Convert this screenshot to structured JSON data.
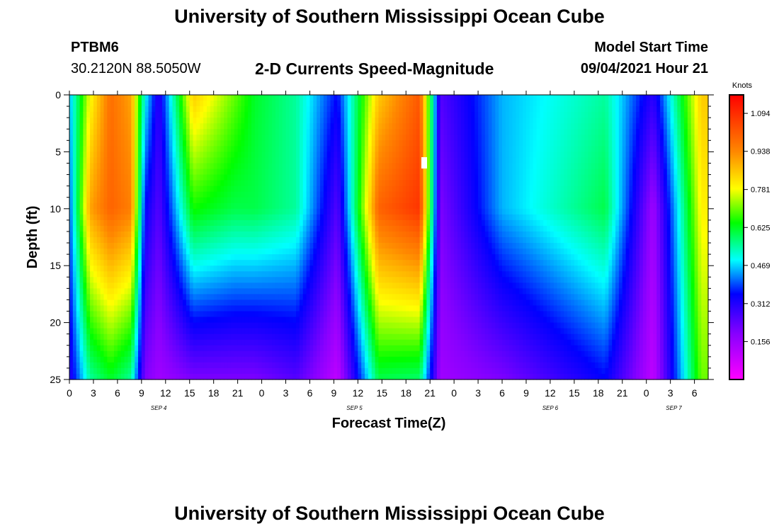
{
  "header": {
    "title": "University of Southern Mississippi Ocean Cube",
    "station_id": "PTBM6",
    "location": "30.2120N  88.5050W",
    "subtitle": "2-D Currents Speed-Magnitude",
    "model_label": "Model Start Time",
    "model_time": "09/04/2021 Hour 21"
  },
  "footer": {
    "title": "University of Southern Mississippi Ocean Cube"
  },
  "chart_data": {
    "type": "heatmap",
    "title": "2-D Currents Speed-Magnitude",
    "xlabel": "Forecast Time(Z)",
    "ylabel": "Depth (ft)",
    "x_hours": [
      0,
      93
    ],
    "y_range": [
      0,
      25
    ],
    "y_ticks": [
      0,
      5,
      10,
      15,
      20,
      25
    ],
    "x_tick_labels": [
      "0",
      "3",
      "6",
      "9",
      "12",
      "15",
      "18",
      "21",
      "0",
      "3",
      "6",
      "9",
      "12",
      "15",
      "18",
      "21",
      "0",
      "3",
      "6",
      "9",
      "12",
      "15",
      "18",
      "21",
      "0",
      "3",
      "6"
    ],
    "day_labels": [
      {
        "text": "SEP 4",
        "hour": 13
      },
      {
        "text": "SEP 5",
        "hour": 41.5
      },
      {
        "text": "SEP 6",
        "hour": 70
      },
      {
        "text": "SEP 7",
        "hour": 88
      }
    ],
    "colorbar": {
      "unit": "Knots",
      "min": 0.0,
      "max": 1.17,
      "tick_values": [
        1.094,
        0.938,
        0.781,
        0.625,
        0.469,
        0.312,
        0.156
      ],
      "tick_labels": [
        "1.094",
        "0.938",
        "0.781",
        "0.625",
        "0.469",
        "0.312",
        "0.156"
      ]
    },
    "flood_ebb_profiles": [
      {
        "hour": 0,
        "surface": 0.45,
        "mid": 0.4,
        "bottom": 0.3
      },
      {
        "hour": 3,
        "surface": 0.78,
        "mid": 0.9,
        "bottom": 0.55
      },
      {
        "hour": 6,
        "surface": 0.98,
        "mid": 1.0,
        "bottom": 0.62
      },
      {
        "hour": 9,
        "surface": 0.9,
        "mid": 0.95,
        "bottom": 0.55
      },
      {
        "hour": 11,
        "surface": 0.5,
        "mid": 0.35,
        "bottom": 0.2
      },
      {
        "hour": 13,
        "surface": 0.3,
        "mid": 0.25,
        "bottom": 0.15
      },
      {
        "hour": 18,
        "surface": 0.85,
        "mid": 0.65,
        "bottom": 0.2
      },
      {
        "hour": 24,
        "surface": 0.7,
        "mid": 0.6,
        "bottom": 0.2
      },
      {
        "hour": 27,
        "surface": 0.62,
        "mid": 0.6,
        "bottom": 0.2
      },
      {
        "hour": 33,
        "surface": 0.55,
        "mid": 0.55,
        "bottom": 0.25
      },
      {
        "hour": 39,
        "surface": 0.35,
        "mid": 0.25,
        "bottom": 0.1
      },
      {
        "hour": 45,
        "surface": 0.85,
        "mid": 1.0,
        "bottom": 0.6
      },
      {
        "hour": 51,
        "surface": 1.02,
        "mid": 1.08,
        "bottom": 0.58
      },
      {
        "hour": 54,
        "surface": 0.25,
        "mid": 0.2,
        "bottom": 0.15
      },
      {
        "hour": 63,
        "surface": 0.45,
        "mid": 0.45,
        "bottom": 0.2
      },
      {
        "hour": 78,
        "surface": 0.55,
        "mid": 0.6,
        "bottom": 0.35
      },
      {
        "hour": 85,
        "surface": 0.3,
        "mid": 0.15,
        "bottom": 0.1
      },
      {
        "hour": 92,
        "surface": 0.85,
        "mid": 0.8,
        "bottom": 0.7
      }
    ]
  }
}
